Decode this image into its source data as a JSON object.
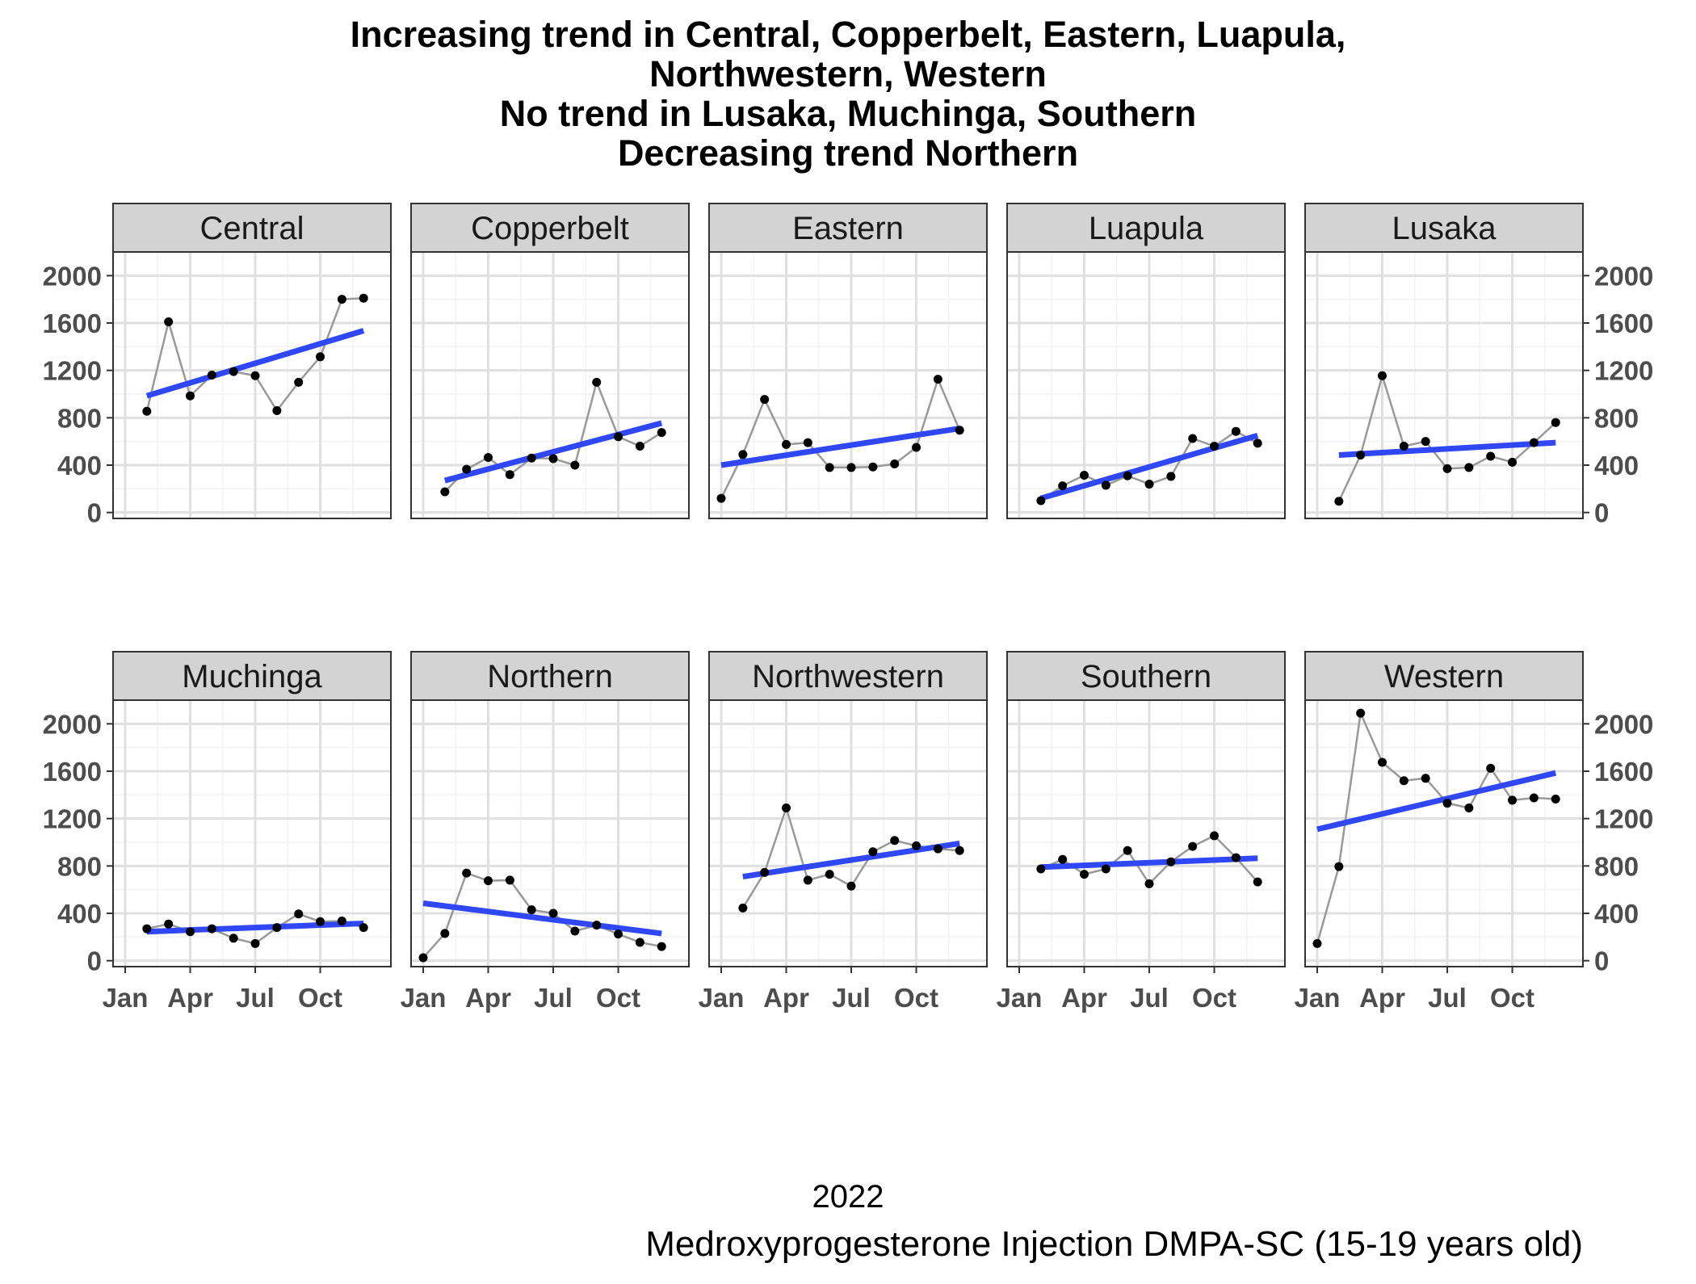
{
  "title_lines": [
    "Increasing trend in Central, Copperbelt, Eastern, Luapula,",
    "Northwestern, Western",
    "No trend in Lusaka, Muchinga, Southern",
    "Decreasing trend Northern"
  ],
  "xlabel": "2022",
  "caption": "Medroxyprogesterone Injection DMPA-SC (15-19 years old)",
  "chart_data": {
    "type": "line",
    "title": "Increasing trend in Central, Copperbelt, Eastern, Luapula, Northwestern, Western / No trend in Lusaka, Muchinga, Southern / Decreasing trend Northern",
    "xlabel": "2022",
    "ylabel": "",
    "x_ticks": [
      "Jan",
      "Apr",
      "Jul",
      "Oct"
    ],
    "y_ticks": [
      0,
      400,
      800,
      1200,
      1600,
      2000
    ],
    "ylim": [
      -50,
      2200
    ],
    "x": [
      "2022-01",
      "2022-02",
      "2022-03",
      "2022-04",
      "2022-05",
      "2022-06",
      "2022-07",
      "2022-08",
      "2022-09",
      "2022-10",
      "2022-11",
      "2022-12"
    ],
    "grid": true,
    "colors": {
      "line": "#999999",
      "point": "#000000",
      "trend": "#3047f5",
      "strip": "#d3d3d3"
    },
    "panels": [
      {
        "name": "Central",
        "values": [
          null,
          855,
          1610,
          985,
          1160,
          1190,
          1155,
          860,
          1100,
          1315,
          1800,
          1810
        ],
        "trend": [
          985,
          1535
        ]
      },
      {
        "name": "Copperbelt",
        "values": [
          null,
          175,
          365,
          465,
          320,
          460,
          455,
          400,
          1100,
          640,
          560,
          675
        ],
        "trend": [
          270,
          755
        ]
      },
      {
        "name": "Eastern",
        "values": [
          120,
          490,
          955,
          575,
          590,
          380,
          380,
          385,
          410,
          550,
          1125,
          695
        ],
        "trend": [
          400,
          710
        ]
      },
      {
        "name": "Luapula",
        "values": [
          null,
          100,
          225,
          315,
          230,
          310,
          240,
          305,
          625,
          560,
          685,
          585
        ],
        "trend": [
          120,
          650
        ]
      },
      {
        "name": "Lusaka",
        "values": [
          null,
          95,
          485,
          1155,
          560,
          600,
          370,
          380,
          475,
          425,
          590,
          760
        ],
        "trend": [
          485,
          590
        ]
      },
      {
        "name": "Muchinga",
        "values": [
          null,
          270,
          310,
          245,
          270,
          190,
          145,
          280,
          395,
          330,
          335,
          280
        ],
        "trend": [
          245,
          315
        ]
      },
      {
        "name": "Northern",
        "values": [
          25,
          230,
          740,
          675,
          680,
          430,
          400,
          250,
          300,
          225,
          155,
          120
        ],
        "trend": [
          485,
          230
        ]
      },
      {
        "name": "Northwestern",
        "values": [
          null,
          445,
          745,
          1290,
          680,
          730,
          630,
          920,
          1015,
          970,
          945,
          930
        ],
        "trend": [
          710,
          990
        ]
      },
      {
        "name": "Southern",
        "values": [
          null,
          775,
          855,
          730,
          775,
          930,
          650,
          835,
          965,
          1055,
          870,
          665
        ],
        "trend": [
          790,
          865
        ]
      },
      {
        "name": "Western",
        "values": [
          145,
          795,
          2090,
          1675,
          1520,
          1540,
          1330,
          1290,
          1625,
          1355,
          1375,
          1365
        ],
        "trend": [
          1110,
          1585
        ]
      }
    ]
  }
}
